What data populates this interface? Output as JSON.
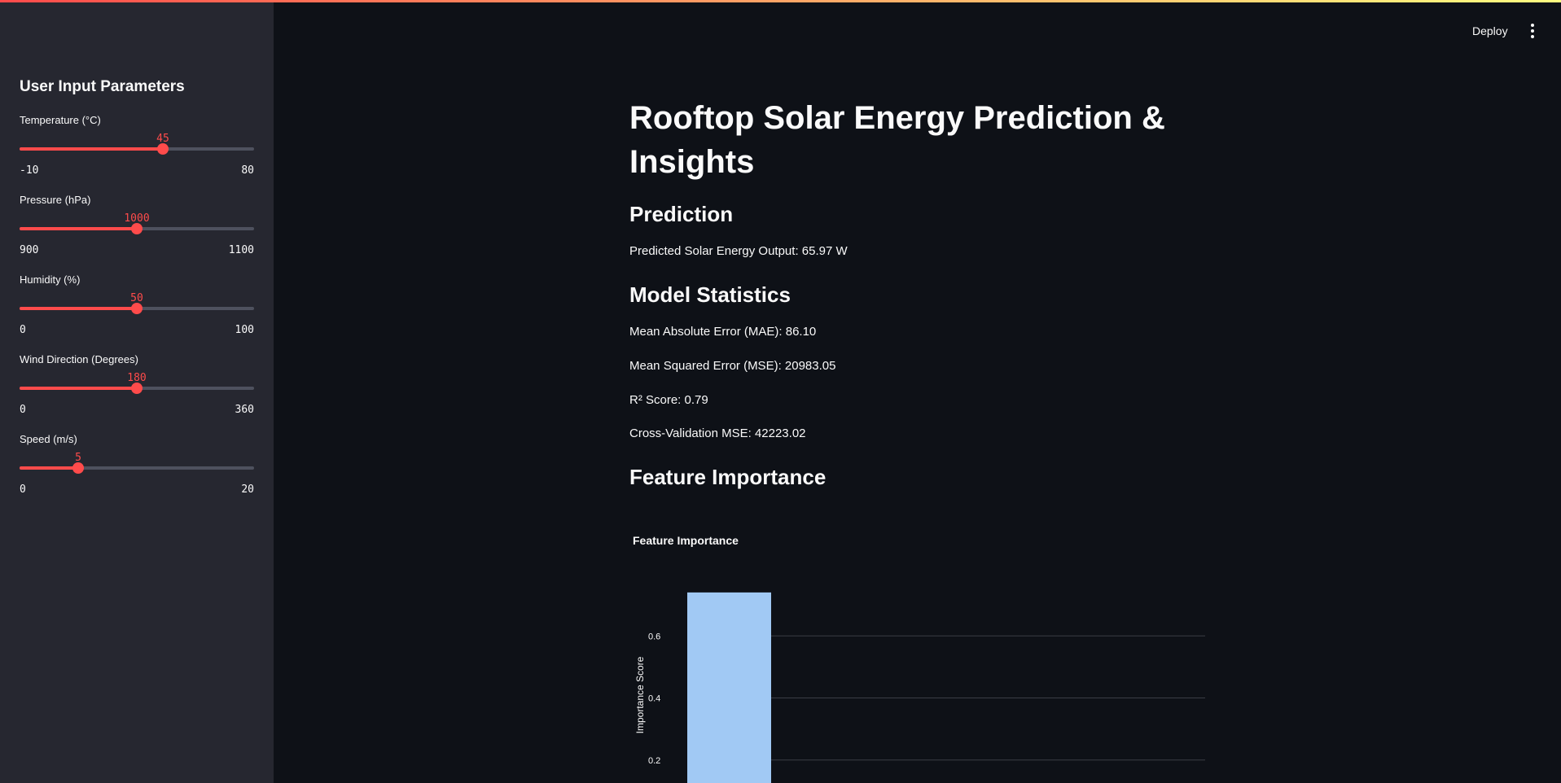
{
  "sidebar": {
    "title": "User Input Parameters",
    "sliders": [
      {
        "label": "Temperature (°C)",
        "value": 45,
        "min": -10,
        "max": 80,
        "value_text": "45",
        "min_text": "-10",
        "max_text": "80"
      },
      {
        "label": "Pressure (hPa)",
        "value": 1000,
        "min": 900,
        "max": 1100,
        "value_text": "1000",
        "min_text": "900",
        "max_text": "1100"
      },
      {
        "label": "Humidity (%)",
        "value": 50,
        "min": 0,
        "max": 100,
        "value_text": "50",
        "min_text": "0",
        "max_text": "100"
      },
      {
        "label": "Wind Direction (Degrees)",
        "value": 180,
        "min": 0,
        "max": 360,
        "value_text": "180",
        "min_text": "0",
        "max_text": "360"
      },
      {
        "label": "Speed (m/s)",
        "value": 5,
        "min": 0,
        "max": 20,
        "value_text": "5",
        "min_text": "0",
        "max_text": "20"
      }
    ]
  },
  "header": {
    "deploy_label": "Deploy",
    "menu_icon": "more-vertical-icon"
  },
  "main": {
    "title": "Rooftop Solar Energy Prediction & Insights",
    "prediction_heading": "Prediction",
    "prediction_text": "Predicted Solar Energy Output: 65.97 W",
    "stats_heading": "Model Statistics",
    "mae_text": "Mean Absolute Error (MAE): 86.10",
    "mse_text": "Mean Squared Error (MSE): 20983.05",
    "r2_text": "R² Score: 0.79",
    "cv_text": "Cross-Validation MSE: 42223.02",
    "feature_heading": "Feature Importance"
  },
  "colors": {
    "accent": "#ff4b4b",
    "bar": "#a1c9f4",
    "background": "#0e1117",
    "sidebar": "#262730"
  },
  "chart_data": {
    "type": "bar",
    "title": "Feature Importance",
    "ylabel": "Importance Score",
    "xlabel": "",
    "categories": [
      ""
    ],
    "values": [
      0.74
    ],
    "ylim": [
      0,
      0.8
    ],
    "yticks": [
      0.2,
      0.4,
      0.6
    ],
    "grid": true
  }
}
